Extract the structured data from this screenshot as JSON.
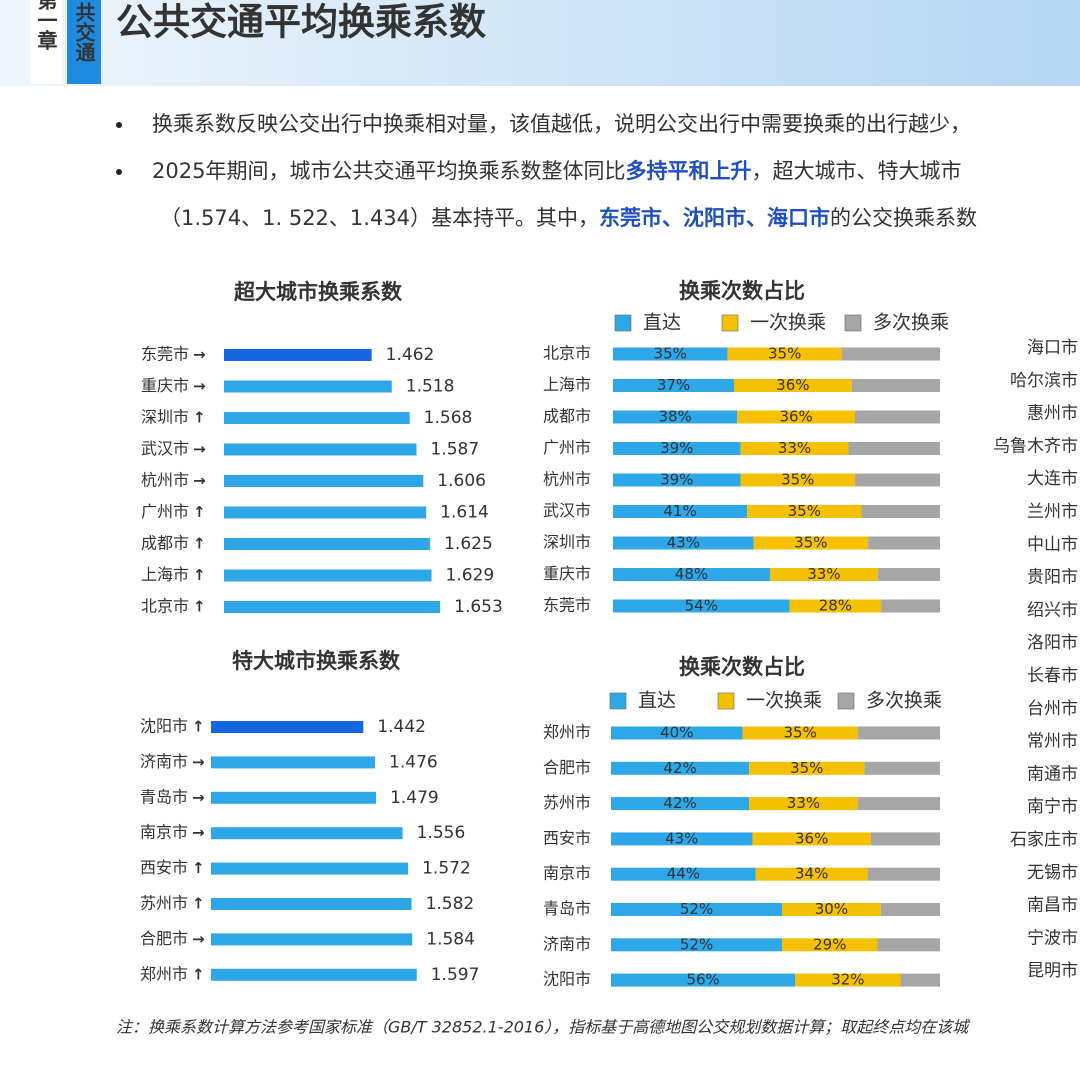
{
  "header": {
    "chapter": "第一章",
    "section": "共交通",
    "title": "公共交通平均换乘系数"
  },
  "highlight_color": "#1f4fbf",
  "bullets": [
    {
      "lines": [
        [
          {
            "text": "换乘系数反映公交出行中换乘相对量，该值越低，说明公交出行中需要换乘的出行越少，"
          }
        ]
      ]
    },
    {
      "lines": [
        [
          {
            "text": "2025年期间，城市公共交通平均换乘系数整体同比"
          },
          {
            "text": "多持平和上升",
            "highlight": true
          },
          {
            "text": "，超大城市、特大城市"
          }
        ],
        [
          {
            "text": "（1.574、1. 522、1.434）基本持平。其中，"
          },
          {
            "text": "东莞市、沈阳市、海口市",
            "highlight": true
          },
          {
            "text": "的公交换乘系数"
          }
        ]
      ]
    }
  ],
  "trend_colors": {
    "→": "#333333",
    "↑": "#d9302c"
  },
  "chart_data": [
    {
      "type": "bar",
      "orientation": "horizontal",
      "title": "超大城市换乘系数",
      "categories": [
        "东莞市",
        "重庆市",
        "深圳市",
        "武汉市",
        "杭州市",
        "广州市",
        "成都市",
        "上海市",
        "北京市"
      ],
      "trends": [
        "→",
        "→",
        "↑",
        "→",
        "→",
        "↑",
        "↑",
        "↑",
        "↑"
      ],
      "values": [
        1.462,
        1.518,
        1.568,
        1.587,
        1.606,
        1.614,
        1.625,
        1.629,
        1.653
      ],
      "colors": [
        "#1467e0",
        "#2ea7e8",
        "#2ea7e8",
        "#2ea7e8",
        "#2ea7e8",
        "#2ea7e8",
        "#2ea7e8",
        "#2ea7e8",
        "#2ea7e8"
      ],
      "xlim": [
        1.05,
        1.7
      ]
    },
    {
      "type": "bar",
      "orientation": "horizontal",
      "title": "特大城市换乘系数",
      "categories": [
        "沈阳市",
        "济南市",
        "青岛市",
        "南京市",
        "西安市",
        "苏州市",
        "合肥市",
        "郑州市"
      ],
      "trends": [
        "↑",
        "→",
        "→",
        "→",
        "↑",
        "↑",
        "→",
        "↑"
      ],
      "values": [
        1.442,
        1.476,
        1.479,
        1.556,
        1.572,
        1.582,
        1.584,
        1.597
      ],
      "colors": [
        "#1467e0",
        "#2ea7e8",
        "#2ea7e8",
        "#2ea7e8",
        "#2ea7e8",
        "#2ea7e8",
        "#2ea7e8",
        "#2ea7e8"
      ],
      "xlim": [
        1.0,
        1.65
      ]
    },
    {
      "type": "stacked_bar",
      "orientation": "horizontal",
      "title": "换乘次数占比",
      "categories": [
        "北京市",
        "上海市",
        "成都市",
        "广州市",
        "杭州市",
        "武汉市",
        "深圳市",
        "重庆市",
        "东莞市"
      ],
      "xlim": [
        0,
        100
      ],
      "series": [
        {
          "name": "直达",
          "color": "#2ea7e8",
          "values": [
            35,
            37,
            38,
            39,
            39,
            41,
            43,
            48,
            54
          ],
          "value_labels": [
            "35%",
            "37%",
            "38%",
            "39%",
            "39%",
            "41%",
            "43%",
            "48%",
            "54%"
          ]
        },
        {
          "name": "一次换乘",
          "color": "#f5c000",
          "values": [
            35,
            36,
            36,
            33,
            35,
            35,
            35,
            33,
            28
          ],
          "value_labels": [
            "35%",
            "36%",
            "36%",
            "33%",
            "35%",
            "35%",
            "35%",
            "33%",
            "28%"
          ]
        },
        {
          "name": "多次换乘",
          "color": "#a6a6a6",
          "values": [
            30,
            27,
            26,
            28,
            26,
            24,
            22,
            19,
            18
          ]
        }
      ]
    },
    {
      "type": "stacked_bar",
      "orientation": "horizontal",
      "title": "换乘次数占比",
      "categories": [
        "郑州市",
        "合肥市",
        "苏州市",
        "西安市",
        "南京市",
        "青岛市",
        "济南市",
        "沈阳市"
      ],
      "xlim": [
        0,
        100
      ],
      "series": [
        {
          "name": "直达",
          "color": "#2ea7e8",
          "values": [
            40,
            42,
            42,
            43,
            44,
            52,
            52,
            56
          ],
          "value_labels": [
            "40%",
            "42%",
            "42%",
            "43%",
            "44%",
            "52%",
            "52%",
            "56%"
          ]
        },
        {
          "name": "一次换乘",
          "color": "#f5c000",
          "values": [
            35,
            35,
            33,
            36,
            34,
            30,
            29,
            32
          ],
          "value_labels": [
            "35%",
            "35%",
            "33%",
            "36%",
            "34%",
            "30%",
            "29%",
            "32%"
          ]
        },
        {
          "name": "多次换乘",
          "color": "#a6a6a6",
          "values": [
            25,
            23,
            25,
            21,
            22,
            18,
            19,
            12
          ]
        }
      ]
    }
  ],
  "side_list": [
    "海口市",
    "哈尔滨市",
    "惠州市",
    "乌鲁木齐市",
    "大连市",
    "兰州市",
    "中山市",
    "贵阳市",
    "绍兴市",
    "洛阳市",
    "长春市",
    "台州市",
    "常州市",
    "南通市",
    "南宁市",
    "石家庄市",
    "无锡市",
    "南昌市",
    "宁波市",
    "昆明市"
  ],
  "footnote": "注：换乘系数计算方法参考国家标准（GB/T 32852.1-2016），指标基于高德地图公交规划数据计算；取起终点均在该城"
}
